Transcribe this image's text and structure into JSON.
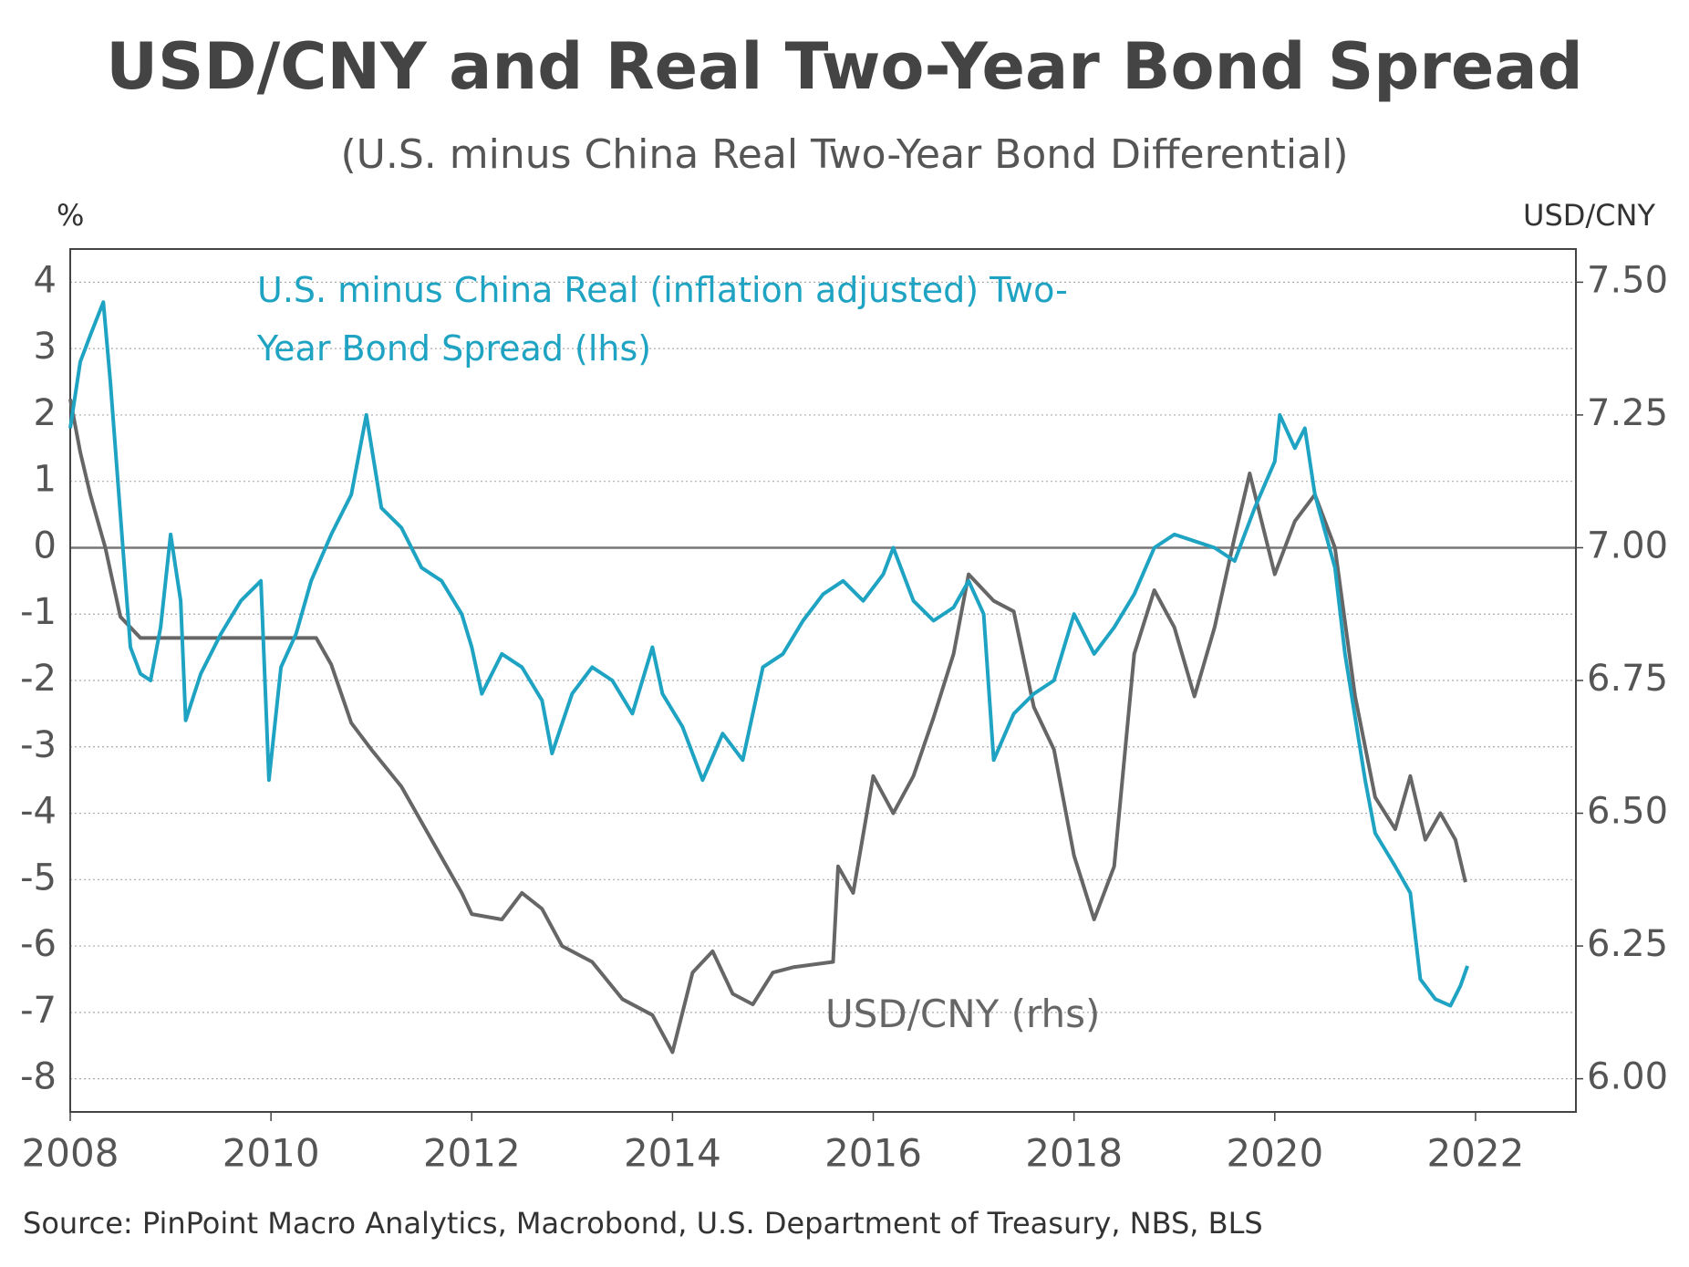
{
  "chart_data": {
    "type": "line",
    "title": "USD/CNY and Real Two-Year Bond Spread",
    "subtitle": "(U.S. minus China Real Two-Year Bond Differential)",
    "y_unit": "%",
    "y2_unit": "USD/CNY",
    "source": "Source: PinPoint Macro Analytics, Macrobond, U.S. Department of Treasury, NBS, BLS",
    "xlim": [
      2008,
      2023
    ],
    "xticks": [
      2008,
      2010,
      2012,
      2014,
      2016,
      2018,
      2020,
      2022
    ],
    "ylim": [
      -8.5,
      4.5
    ],
    "yticks": [
      -8,
      -7,
      -6,
      -5,
      -4,
      -3,
      -2,
      -1,
      0,
      1,
      2,
      3,
      4
    ],
    "y2lim": [
      5.9375,
      7.5625
    ],
    "y2ticks": [
      {
        "value": 6,
        "label": "6.00"
      },
      {
        "value": 6.25,
        "label": "6.25"
      },
      {
        "value": 6.5,
        "label": "6.50"
      },
      {
        "value": 6.75,
        "label": "6.75"
      },
      {
        "value": 7,
        "label": "7.00"
      },
      {
        "value": 7.25,
        "label": "7.25"
      },
      {
        "value": 7.5,
        "label": "7.50"
      }
    ],
    "grid": true,
    "series": [
      {
        "name": "U.S. minus China Real (inflation adjusted) Two-Year Bond Spread (lhs)",
        "color": "#1fa3c3",
        "axis": "y",
        "x": [
          2008.0,
          2008.1,
          2008.2,
          2008.33,
          2008.4,
          2008.5,
          2008.6,
          2008.7,
          2008.8,
          2008.9,
          2009.0,
          2009.1,
          2009.15,
          2009.3,
          2009.5,
          2009.7,
          2009.9,
          2009.98,
          2010.1,
          2010.25,
          2010.4,
          2010.6,
          2010.8,
          2010.95,
          2011.1,
          2011.3,
          2011.5,
          2011.7,
          2011.9,
          2012.0,
          2012.1,
          2012.3,
          2012.5,
          2012.7,
          2012.8,
          2013.0,
          2013.2,
          2013.4,
          2013.6,
          2013.8,
          2013.9,
          2014.1,
          2014.3,
          2014.5,
          2014.7,
          2014.9,
          2015.1,
          2015.3,
          2015.5,
          2015.7,
          2015.9,
          2016.1,
          2016.2,
          2016.4,
          2016.6,
          2016.8,
          2016.95,
          2017.1,
          2017.2,
          2017.4,
          2017.6,
          2017.8,
          2018.0,
          2018.2,
          2018.4,
          2018.6,
          2018.8,
          2019.0,
          2019.2,
          2019.4,
          2019.6,
          2019.8,
          2020.0,
          2020.05,
          2020.2,
          2020.3,
          2020.4,
          2020.6,
          2020.7,
          2020.9,
          2021.0,
          2021.2,
          2021.35,
          2021.45,
          2021.6,
          2021.75,
          2021.85,
          2021.92
        ],
        "values": [
          1.8,
          2.8,
          3.2,
          3.7,
          2.5,
          0.5,
          -1.5,
          -1.9,
          -2.0,
          -1.2,
          0.2,
          -0.8,
          -2.6,
          -1.9,
          -1.3,
          -0.8,
          -0.5,
          -3.5,
          -1.8,
          -1.3,
          -0.5,
          0.2,
          0.8,
          2.0,
          0.6,
          0.3,
          -0.3,
          -0.5,
          -1.0,
          -1.5,
          -2.2,
          -1.6,
          -1.8,
          -2.3,
          -3.1,
          -2.2,
          -1.8,
          -2.0,
          -2.5,
          -1.5,
          -2.2,
          -2.7,
          -3.5,
          -2.8,
          -3.2,
          -1.8,
          -1.6,
          -1.1,
          -0.7,
          -0.5,
          -0.8,
          -0.4,
          0.0,
          -0.8,
          -1.1,
          -0.9,
          -0.5,
          -1.0,
          -3.2,
          -2.5,
          -2.2,
          -2.0,
          -1.0,
          -1.6,
          -1.2,
          -0.7,
          0.0,
          0.2,
          0.1,
          0.0,
          -0.2,
          0.6,
          1.3,
          2.0,
          1.5,
          1.8,
          0.8,
          -0.3,
          -1.6,
          -3.5,
          -4.3,
          -4.8,
          -5.2,
          -6.5,
          -6.8,
          -6.9,
          -6.6,
          -6.3
        ]
      },
      {
        "name": "USD/CNY (rhs)",
        "color": "#666666",
        "axis": "y2",
        "x": [
          2008.0,
          2008.1,
          2008.2,
          2008.35,
          2008.5,
          2008.7,
          2009.0,
          2009.5,
          2010.0,
          2010.45,
          2010.6,
          2010.8,
          2011.0,
          2011.3,
          2011.6,
          2011.9,
          2012.0,
          2012.3,
          2012.5,
          2012.7,
          2012.9,
          2013.2,
          2013.5,
          2013.8,
          2014.0,
          2014.2,
          2014.4,
          2014.6,
          2014.8,
          2015.0,
          2015.2,
          2015.6,
          2015.65,
          2015.8,
          2016.0,
          2016.2,
          2016.4,
          2016.6,
          2016.8,
          2016.95,
          2017.2,
          2017.4,
          2017.6,
          2017.8,
          2018.0,
          2018.2,
          2018.4,
          2018.6,
          2018.8,
          2019.0,
          2019.2,
          2019.4,
          2019.6,
          2019.75,
          2020.0,
          2020.2,
          2020.4,
          2020.6,
          2020.8,
          2021.0,
          2021.2,
          2021.35,
          2021.5,
          2021.65,
          2021.8,
          2021.9
        ],
        "values": [
          7.28,
          7.18,
          7.1,
          7.0,
          6.87,
          6.83,
          6.83,
          6.83,
          6.83,
          6.83,
          6.78,
          6.67,
          6.62,
          6.55,
          6.45,
          6.35,
          6.31,
          6.3,
          6.35,
          6.32,
          6.25,
          6.22,
          6.15,
          6.12,
          6.05,
          6.2,
          6.24,
          6.16,
          6.14,
          6.2,
          6.21,
          6.22,
          6.4,
          6.35,
          6.57,
          6.5,
          6.57,
          6.68,
          6.8,
          6.95,
          6.9,
          6.88,
          6.7,
          6.62,
          6.42,
          6.3,
          6.4,
          6.8,
          6.92,
          6.85,
          6.72,
          6.85,
          7.02,
          7.14,
          6.95,
          7.05,
          7.1,
          7.0,
          6.72,
          6.53,
          6.47,
          6.57,
          6.45,
          6.5,
          6.45,
          6.37
        ]
      }
    ]
  }
}
